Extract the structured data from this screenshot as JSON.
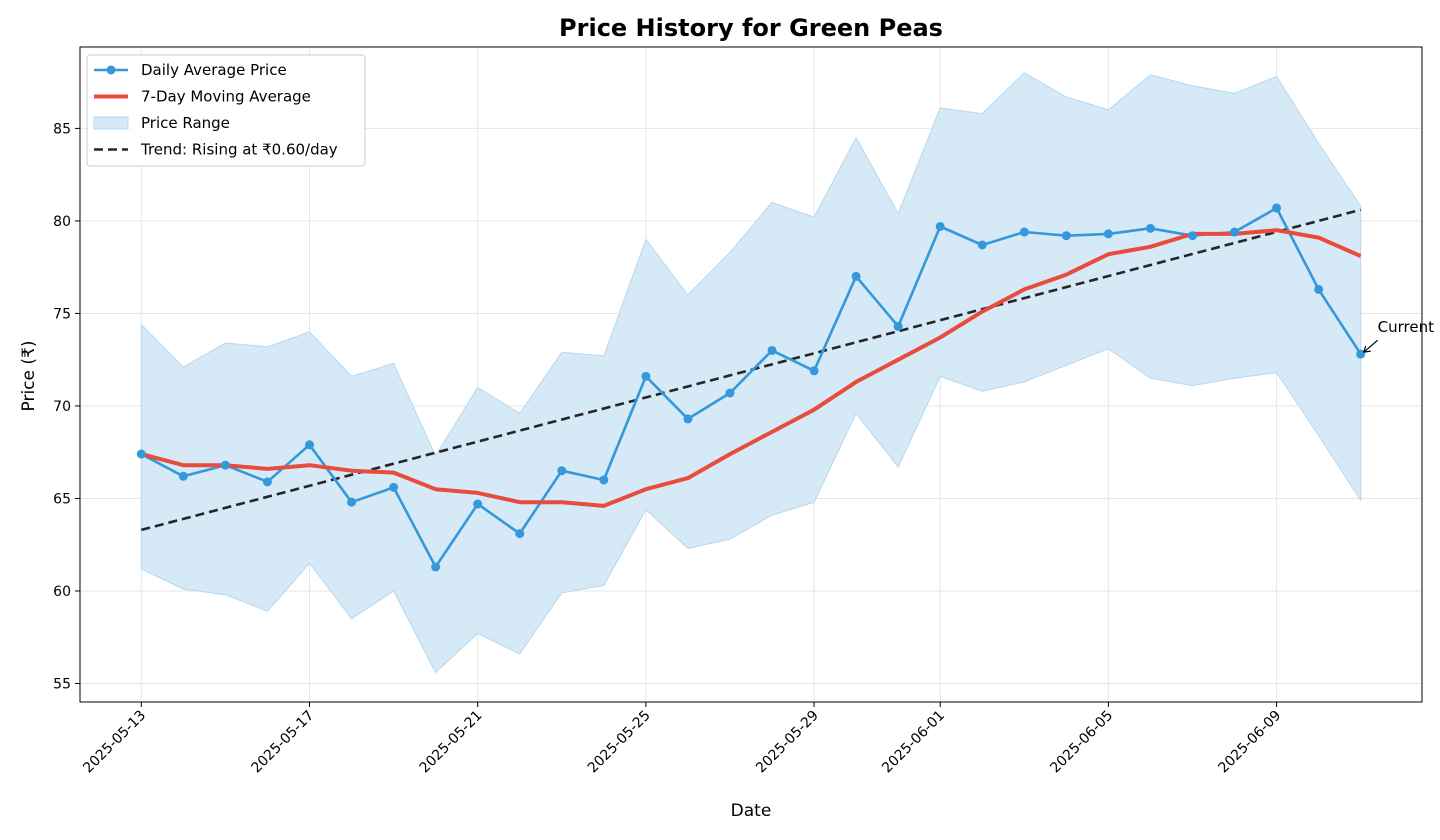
{
  "chart_data": {
    "type": "line",
    "title": "Price History for Green Peas",
    "xlabel": "Date",
    "ylabel": "Price (₹)",
    "ylim": [
      54,
      89.4
    ],
    "xlim": [
      "2025-05-11 13:00",
      "2025-06-12 11:00"
    ],
    "yticks": [
      55,
      60,
      65,
      70,
      75,
      80,
      85
    ],
    "xticks": [
      "2025-05-13",
      "2025-05-17",
      "2025-05-21",
      "2025-05-25",
      "2025-05-29",
      "2025-06-01",
      "2025-06-05",
      "2025-06-09"
    ],
    "grid": true,
    "legend_position": "top-left",
    "colors": {
      "daily": "#3498db",
      "moving_avg": "#e74c3c",
      "range_fill": "#d6e9f7",
      "range_edge": "#b7d7ef",
      "trend": "#262626",
      "grid": "#e6e6e6"
    },
    "x": [
      "2025-05-13",
      "2025-05-14",
      "2025-05-15",
      "2025-05-16",
      "2025-05-17",
      "2025-05-18",
      "2025-05-19",
      "2025-05-20",
      "2025-05-21",
      "2025-05-22",
      "2025-05-23",
      "2025-05-24",
      "2025-05-25",
      "2025-05-26",
      "2025-05-27",
      "2025-05-28",
      "2025-05-29",
      "2025-05-30",
      "2025-05-31",
      "2025-06-01",
      "2025-06-02",
      "2025-06-03",
      "2025-06-04",
      "2025-06-05",
      "2025-06-06",
      "2025-06-07",
      "2025-06-08",
      "2025-06-09",
      "2025-06-10",
      "2025-06-11"
    ],
    "series": [
      {
        "name": "Daily Average Price",
        "style": "line-with-markers",
        "values": [
          67.4,
          66.2,
          66.8,
          65.9,
          67.9,
          64.8,
          65.6,
          61.3,
          64.7,
          63.1,
          66.5,
          66.0,
          71.6,
          69.3,
          70.7,
          73.0,
          71.9,
          77.0,
          74.3,
          79.7,
          78.7,
          79.4,
          79.2,
          79.3,
          79.6,
          79.2,
          79.4,
          80.7,
          76.3,
          72.8
        ]
      },
      {
        "name": "7-Day Moving Average",
        "style": "thick-line",
        "values": [
          67.4,
          66.8,
          66.8,
          66.6,
          66.8,
          66.5,
          66.4,
          65.5,
          65.3,
          64.8,
          64.8,
          64.6,
          65.5,
          66.1,
          67.4,
          68.6,
          69.8,
          71.3,
          72.5,
          73.7,
          75.1,
          76.3,
          77.1,
          78.2,
          78.6,
          79.3,
          79.3,
          79.5,
          79.1,
          78.1
        ]
      },
      {
        "name": "Price Range",
        "style": "band",
        "upper": [
          74.4,
          72.1,
          73.4,
          73.2,
          74.0,
          71.6,
          72.3,
          67.3,
          71.0,
          69.6,
          72.9,
          72.7,
          79.0,
          76.0,
          78.3,
          81.0,
          80.2,
          84.5,
          80.4,
          86.1,
          85.8,
          88.0,
          86.7,
          86.0,
          87.9,
          87.3,
          86.9,
          87.8,
          84.2,
          80.8
        ],
        "lower": [
          61.2,
          60.1,
          59.8,
          58.9,
          61.5,
          58.5,
          60.0,
          55.6,
          57.7,
          56.6,
          59.9,
          60.3,
          64.4,
          62.3,
          62.8,
          64.1,
          64.8,
          69.6,
          66.7,
          71.6,
          70.8,
          71.3,
          72.2,
          73.1,
          71.5,
          71.1,
          71.5,
          71.8,
          68.4,
          64.9
        ]
      },
      {
        "name": "Trend: Rising at ₹0.60/day",
        "style": "dashed",
        "x": [
          "2025-05-13",
          "2025-06-11"
        ],
        "values": [
          63.3,
          80.6
        ]
      }
    ],
    "annotations": [
      {
        "text": "Current",
        "x": "2025-06-11",
        "y": 72.8,
        "arrow": true
      }
    ]
  }
}
